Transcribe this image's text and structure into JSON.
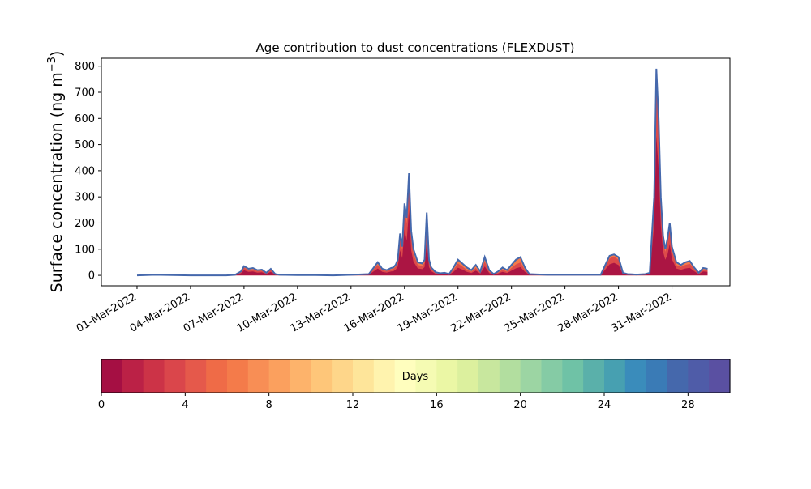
{
  "chart_data": {
    "type": "area",
    "title": "Age contribution to dust concentrations (FLEXDUST)",
    "ylabel_main": "Surface concentration (ng m",
    "ylabel_sup": "−3",
    "ylabel_close": ")",
    "xlabel": "",
    "ylim": [
      -40,
      830
    ],
    "xlim": [
      "2022-02-27T00:00",
      "2022-04-03T06:00"
    ],
    "yticks": [
      0,
      100,
      200,
      300,
      400,
      500,
      600,
      700,
      800
    ],
    "yticklabels": [
      "0",
      "100",
      "200",
      "300",
      "400",
      "500",
      "600",
      "700",
      "800"
    ],
    "xticks": [
      "2022-03-01",
      "2022-03-04",
      "2022-03-07",
      "2022-03-10",
      "2022-03-13",
      "2022-03-16",
      "2022-03-19",
      "2022-03-22",
      "2022-03-25",
      "2022-03-28",
      "2022-03-31"
    ],
    "xticklabels": [
      "01-Mar-2022",
      "04-Mar-2022",
      "07-Mar-2022",
      "10-Mar-2022",
      "13-Mar-2022",
      "16-Mar-2022",
      "19-Mar-2022",
      "22-Mar-2022",
      "25-Mar-2022",
      "28-Mar-2022",
      "31-Mar-2022"
    ],
    "series_note": "stacked by age in days (0-30), total shown",
    "total": {
      "dates": [
        "2022-03-01T00:00",
        "2022-03-02T00:00",
        "2022-03-03T00:00",
        "2022-03-04T00:00",
        "2022-03-05T00:00",
        "2022-03-06T00:00",
        "2022-03-06T12:00",
        "2022-03-06T20:00",
        "2022-03-07T00:00",
        "2022-03-07T06:00",
        "2022-03-07T12:00",
        "2022-03-07T18:00",
        "2022-03-08T00:00",
        "2022-03-08T06:00",
        "2022-03-08T12:00",
        "2022-03-08T18:00",
        "2022-03-09T00:00",
        "2022-03-10T00:00",
        "2022-03-11T00:00",
        "2022-03-12T00:00",
        "2022-03-13T00:00",
        "2022-03-14T00:00",
        "2022-03-14T12:00",
        "2022-03-14T18:00",
        "2022-03-15T00:00",
        "2022-03-15T06:00",
        "2022-03-15T09:00",
        "2022-03-15T12:00",
        "2022-03-15T15:00",
        "2022-03-15T18:00",
        "2022-03-15T21:00",
        "2022-03-16T00:00",
        "2022-03-16T03:00",
        "2022-03-16T06:00",
        "2022-03-16T09:00",
        "2022-03-16T12:00",
        "2022-03-16T18:00",
        "2022-03-17T00:00",
        "2022-03-17T03:00",
        "2022-03-17T06:00",
        "2022-03-17T09:00",
        "2022-03-17T12:00",
        "2022-03-17T18:00",
        "2022-03-18T00:00",
        "2022-03-18T06:00",
        "2022-03-18T12:00",
        "2022-03-18T18:00",
        "2022-03-19T00:00",
        "2022-03-19T06:00",
        "2022-03-19T12:00",
        "2022-03-19T18:00",
        "2022-03-20T00:00",
        "2022-03-20T06:00",
        "2022-03-20T12:00",
        "2022-03-20T18:00",
        "2022-03-21T00:00",
        "2022-03-21T06:00",
        "2022-03-21T12:00",
        "2022-03-21T18:00",
        "2022-03-22T00:00",
        "2022-03-22T06:00",
        "2022-03-22T12:00",
        "2022-03-22T18:00",
        "2022-03-23T00:00",
        "2022-03-24T00:00",
        "2022-03-25T00:00",
        "2022-03-26T00:00",
        "2022-03-27T00:00",
        "2022-03-27T12:00",
        "2022-03-27T18:00",
        "2022-03-28T00:00",
        "2022-03-28T06:00",
        "2022-03-28T12:00",
        "2022-03-28T18:00",
        "2022-03-29T00:00",
        "2022-03-29T12:00",
        "2022-03-29T18:00",
        "2022-03-30T00:00",
        "2022-03-30T03:00",
        "2022-03-30T06:00",
        "2022-03-30T09:00",
        "2022-03-30T12:00",
        "2022-03-30T15:00",
        "2022-03-30T18:00",
        "2022-03-30T21:00",
        "2022-03-31T00:00",
        "2022-03-31T06:00",
        "2022-03-31T12:00",
        "2022-03-31T18:00",
        "2022-04-01T00:00",
        "2022-04-01T06:00",
        "2022-04-01T12:00",
        "2022-04-01T18:00",
        "2022-04-02T00:00"
      ],
      "values": [
        0,
        2,
        1,
        0,
        0,
        0,
        2,
        15,
        35,
        25,
        28,
        20,
        22,
        10,
        25,
        5,
        2,
        1,
        1,
        0,
        2,
        5,
        50,
        25,
        20,
        28,
        30,
        40,
        60,
        160,
        110,
        275,
        220,
        390,
        170,
        100,
        50,
        45,
        60,
        240,
        60,
        30,
        12,
        8,
        10,
        5,
        30,
        60,
        45,
        30,
        20,
        40,
        15,
        70,
        20,
        5,
        15,
        30,
        20,
        40,
        60,
        70,
        30,
        5,
        2,
        2,
        2,
        2,
        75,
        80,
        70,
        10,
        5,
        4,
        3,
        5,
        10,
        300,
        790,
        600,
        300,
        150,
        100,
        140,
        200,
        110,
        50,
        40,
        50,
        55,
        30,
        10,
        28,
        25
      ]
    },
    "young_fraction": [
      0.6,
      0.6,
      0.6,
      0.6,
      0.6,
      0.6,
      0.7,
      0.7,
      0.75,
      0.7,
      0.7,
      0.7,
      0.7,
      0.7,
      0.7,
      0.7,
      0.6,
      0.6,
      0.6,
      0.6,
      0.6,
      0.6,
      0.7,
      0.7,
      0.7,
      0.7,
      0.7,
      0.7,
      0.75,
      0.8,
      0.8,
      0.85,
      0.8,
      0.85,
      0.75,
      0.7,
      0.7,
      0.7,
      0.7,
      0.7,
      0.7,
      0.7,
      0.6,
      0.6,
      0.6,
      0.6,
      0.6,
      0.65,
      0.65,
      0.6,
      0.6,
      0.6,
      0.6,
      0.65,
      0.6,
      0.6,
      0.6,
      0.6,
      0.6,
      0.6,
      0.6,
      0.6,
      0.6,
      0.6,
      0.6,
      0.6,
      0.6,
      0.6,
      0.75,
      0.8,
      0.75,
      0.6,
      0.6,
      0.6,
      0.6,
      0.6,
      0.6,
      0.85,
      0.9,
      0.9,
      0.85,
      0.8,
      0.8,
      0.75,
      0.8,
      0.75,
      0.7,
      0.7,
      0.7,
      0.7,
      0.7,
      0.6,
      0.7,
      0.7
    ]
  },
  "colorbar": {
    "label": "Days",
    "vmin": 0,
    "vmax": 30,
    "ticks": [
      0,
      4,
      8,
      12,
      16,
      20,
      24,
      28
    ],
    "ticklabels": [
      "0",
      "4",
      "8",
      "12",
      "16",
      "20",
      "24",
      "28"
    ],
    "colors": [
      "#a50f43",
      "#bb2146",
      "#cc3347",
      "#da464b",
      "#e5594b",
      "#ef6b47",
      "#f47b4a",
      "#f88e55",
      "#fba05e",
      "#fdb36b",
      "#fec679",
      "#fed68a",
      "#fee59a",
      "#fff3ae",
      "#fffebe",
      "#f5fbb3",
      "#ebf7a5",
      "#dcf09e",
      "#c8e79e",
      "#b2de9f",
      "#9cd5a3",
      "#85cba5",
      "#6fc2a6",
      "#5ab0aa",
      "#47a0b1",
      "#3a8cbb",
      "#3a7bb6",
      "#4568ac",
      "#4f5ca8",
      "#5a50a2"
    ],
    "series_colors": {
      "young": "#a50f43",
      "mid": "#dd4b4a",
      "old": "#f47b4a",
      "edge": "#4568ac"
    }
  }
}
